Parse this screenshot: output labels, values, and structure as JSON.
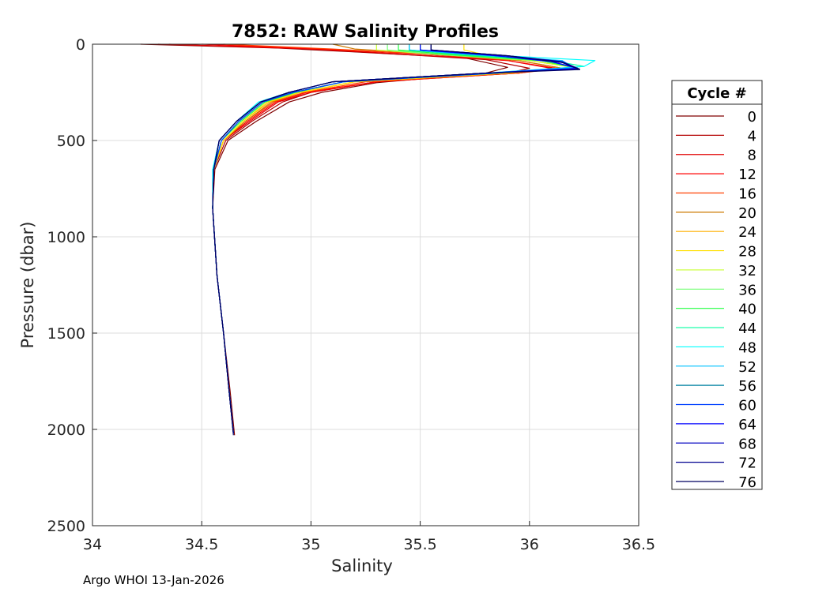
{
  "chart_data": {
    "type": "line",
    "title": "7852: RAW Salinity Profiles",
    "xlabel": "Salinity",
    "ylabel": "Pressure (dbar)",
    "xlim": [
      34,
      36.5
    ],
    "ylim": [
      0,
      2500
    ],
    "y_reversed": true,
    "grid": true,
    "xticks": [
      34,
      34.5,
      35,
      35.5,
      36,
      36.5
    ],
    "xtick_labels": [
      "34",
      "34.5",
      "35",
      "35.5",
      "36",
      "36.5"
    ],
    "yticks": [
      0,
      500,
      1000,
      1500,
      2000,
      2500
    ],
    "ytick_labels": [
      "0",
      "500",
      "1000",
      "1500",
      "2000",
      "2500"
    ],
    "legend": {
      "title": "Cycle #",
      "placement": "outside-right",
      "entries": [
        {
          "label": "0",
          "color": "#800000"
        },
        {
          "label": "4",
          "color": "#b40000"
        },
        {
          "label": "8",
          "color": "#e00000"
        },
        {
          "label": "12",
          "color": "#ff0000"
        },
        {
          "label": "16",
          "color": "#ff4000"
        },
        {
          "label": "20",
          "color": "#cc7a00"
        },
        {
          "label": "24",
          "color": "#ffb000"
        },
        {
          "label": "28",
          "color": "#ffe000"
        },
        {
          "label": "32",
          "color": "#c8ff30"
        },
        {
          "label": "36",
          "color": "#70ff70"
        },
        {
          "label": "40",
          "color": "#20ff40"
        },
        {
          "label": "44",
          "color": "#00ffa0"
        },
        {
          "label": "48",
          "color": "#00ffff"
        },
        {
          "label": "52",
          "color": "#00c0ff"
        },
        {
          "label": "56",
          "color": "#0080a0"
        },
        {
          "label": "60",
          "color": "#0040ff"
        },
        {
          "label": "64",
          "color": "#0000ff"
        },
        {
          "label": "68",
          "color": "#0000c0"
        },
        {
          "label": "72",
          "color": "#000090"
        },
        {
          "label": "76",
          "color": "#000060"
        }
      ]
    },
    "series": [
      {
        "label": "0",
        "color": "#800000",
        "x": [
          34.22,
          34.85,
          35.2,
          35.7,
          35.9,
          35.8,
          35.3,
          35.05,
          34.9,
          34.75,
          34.62,
          34.56,
          34.55,
          34.57,
          34.6,
          34.63,
          34.65
        ],
        "y": [
          0,
          20,
          40,
          70,
          120,
          150,
          200,
          250,
          300,
          400,
          500,
          650,
          850,
          1200,
          1500,
          1800,
          2030
        ]
      },
      {
        "label": "4",
        "color": "#b40000",
        "x": [
          34.3,
          34.9,
          35.3,
          35.8,
          36.0,
          35.9,
          35.3,
          35.0,
          34.87,
          34.73,
          34.61,
          34.555,
          34.55,
          34.57,
          34.6,
          34.625,
          34.645
        ],
        "y": [
          0,
          20,
          45,
          80,
          125,
          150,
          195,
          250,
          300,
          400,
          500,
          650,
          850,
          1200,
          1500,
          1800,
          2020
        ]
      },
      {
        "label": "8",
        "color": "#e00000",
        "x": [
          34.35,
          35.0,
          35.4,
          35.9,
          36.1,
          35.95,
          35.3,
          35.0,
          34.85,
          34.72,
          34.6,
          34.555,
          34.55,
          34.57,
          34.6,
          34.625,
          34.645
        ],
        "y": [
          0,
          25,
          50,
          85,
          125,
          150,
          195,
          250,
          300,
          400,
          500,
          650,
          850,
          1200,
          1500,
          1800,
          2020
        ]
      },
      {
        "label": "12",
        "color": "#ff0000",
        "x": [
          34.5,
          35.05,
          35.5,
          35.9,
          36.12,
          35.95,
          35.3,
          34.98,
          34.84,
          34.71,
          34.6,
          34.555,
          34.55,
          34.57,
          34.6,
          34.625,
          34.645
        ],
        "y": [
          0,
          25,
          50,
          85,
          125,
          150,
          195,
          250,
          300,
          400,
          500,
          650,
          850,
          1200,
          1500,
          1800,
          2020
        ]
      },
      {
        "label": "16",
        "color": "#ff4000",
        "x": [
          34.6,
          35.1,
          35.5,
          35.95,
          36.15,
          35.95,
          35.25,
          34.97,
          34.83,
          34.7,
          34.6,
          34.555,
          34.55,
          34.57,
          34.6,
          34.625,
          34.645
        ],
        "y": [
          0,
          25,
          50,
          85,
          125,
          150,
          195,
          250,
          300,
          400,
          500,
          650,
          850,
          1200,
          1500,
          1800,
          2020
        ]
      },
      {
        "label": "20",
        "color": "#cc7a00",
        "x": [
          35.1,
          35.2,
          35.55,
          35.95,
          36.15,
          35.9,
          35.2,
          34.95,
          34.82,
          34.7,
          34.6,
          34.555,
          34.55,
          34.57,
          34.6,
          34.625,
          34.645
        ],
        "y": [
          0,
          25,
          50,
          85,
          125,
          150,
          195,
          250,
          300,
          400,
          500,
          650,
          850,
          1200,
          1500,
          1800,
          2020
        ]
      },
      {
        "label": "24",
        "color": "#ffb000",
        "x": [
          35.5,
          35.5,
          35.65,
          36.0,
          36.2,
          35.9,
          35.2,
          34.95,
          34.81,
          34.69,
          34.6,
          34.555,
          34.55,
          34.57,
          34.6,
          34.625,
          34.645
        ],
        "y": [
          0,
          30,
          55,
          85,
          120,
          150,
          195,
          250,
          300,
          400,
          500,
          650,
          850,
          1200,
          1500,
          1800,
          2020
        ]
      },
      {
        "label": "28",
        "color": "#ffe000",
        "x": [
          35.7,
          35.7,
          35.8,
          36.0,
          36.2,
          35.9,
          35.2,
          34.95,
          34.8,
          34.69,
          34.6,
          34.555,
          34.55,
          34.57,
          34.6,
          34.625,
          34.645
        ],
        "y": [
          0,
          30,
          55,
          85,
          120,
          150,
          195,
          250,
          300,
          400,
          500,
          650,
          850,
          1200,
          1500,
          1800,
          2020
        ]
      },
      {
        "label": "32",
        "color": "#c8ff30",
        "x": [
          35.3,
          35.3,
          35.6,
          36.0,
          36.2,
          35.85,
          35.15,
          34.93,
          34.79,
          34.68,
          34.59,
          34.555,
          34.55,
          34.57,
          34.6,
          34.625,
          34.645
        ],
        "y": [
          0,
          30,
          55,
          85,
          120,
          150,
          195,
          250,
          300,
          400,
          500,
          650,
          850,
          1200,
          1500,
          1800,
          2020
        ]
      },
      {
        "label": "36",
        "color": "#70ff70",
        "x": [
          35.35,
          35.35,
          35.6,
          36.05,
          36.2,
          35.85,
          35.15,
          34.93,
          34.79,
          34.68,
          34.59,
          34.555,
          34.55,
          34.57,
          34.6,
          34.625,
          34.645
        ],
        "y": [
          0,
          30,
          55,
          85,
          120,
          150,
          195,
          250,
          300,
          400,
          500,
          650,
          850,
          1200,
          1500,
          1800,
          2020
        ]
      },
      {
        "label": "40",
        "color": "#20ff40",
        "x": [
          35.4,
          35.4,
          35.65,
          36.05,
          36.2,
          35.85,
          35.15,
          34.93,
          34.79,
          34.68,
          34.59,
          34.555,
          34.55,
          34.57,
          34.6,
          34.625,
          34.645
        ],
        "y": [
          0,
          30,
          55,
          85,
          120,
          150,
          195,
          250,
          300,
          400,
          500,
          650,
          850,
          1200,
          1500,
          1800,
          2020
        ]
      },
      {
        "label": "44",
        "color": "#00ffa0",
        "x": [
          35.45,
          35.45,
          35.7,
          36.1,
          36.25,
          35.85,
          35.15,
          34.92,
          34.78,
          34.67,
          34.59,
          34.555,
          34.55,
          34.57,
          34.6,
          34.625,
          34.645
        ],
        "y": [
          0,
          30,
          55,
          85,
          115,
          150,
          195,
          250,
          300,
          400,
          500,
          650,
          850,
          1200,
          1500,
          1800,
          2020
        ]
      },
      {
        "label": "48",
        "color": "#00ffff",
        "x": [
          35.5,
          35.5,
          35.8,
          36.3,
          36.25,
          35.8,
          35.1,
          34.9,
          34.76,
          34.66,
          34.58,
          34.55,
          34.55,
          34.57,
          34.6,
          34.625,
          34.645
        ],
        "y": [
          0,
          30,
          55,
          85,
          115,
          150,
          195,
          250,
          300,
          400,
          500,
          650,
          850,
          1200,
          1500,
          1800,
          2020
        ]
      },
      {
        "label": "52",
        "color": "#00c0ff",
        "x": [
          35.45,
          35.45,
          35.75,
          36.15,
          36.2,
          35.8,
          35.1,
          34.9,
          34.77,
          34.66,
          34.58,
          34.555,
          34.55,
          34.57,
          34.6,
          34.625,
          34.645
        ],
        "y": [
          0,
          30,
          55,
          85,
          120,
          150,
          195,
          250,
          300,
          400,
          500,
          650,
          850,
          1200,
          1500,
          1800,
          2020
        ]
      },
      {
        "label": "56",
        "color": "#0080a0",
        "x": [
          35.5,
          35.5,
          35.8,
          36.1,
          36.22,
          35.85,
          35.15,
          34.92,
          34.78,
          34.67,
          34.59,
          34.555,
          34.55,
          34.57,
          34.6,
          34.625,
          34.645
        ],
        "y": [
          0,
          30,
          55,
          90,
          125,
          150,
          195,
          250,
          300,
          400,
          500,
          650,
          850,
          1200,
          1500,
          1800,
          2020
        ]
      },
      {
        "label": "60",
        "color": "#0040ff",
        "x": [
          35.55,
          35.55,
          35.85,
          36.1,
          36.22,
          35.85,
          35.15,
          34.92,
          34.78,
          34.67,
          34.59,
          34.555,
          34.55,
          34.57,
          34.6,
          34.625,
          34.645
        ],
        "y": [
          0,
          30,
          60,
          90,
          125,
          150,
          195,
          250,
          300,
          400,
          500,
          650,
          850,
          1200,
          1500,
          1800,
          2020
        ]
      },
      {
        "label": "64",
        "color": "#0000ff",
        "x": [
          35.5,
          35.5,
          35.85,
          36.1,
          36.22,
          35.8,
          35.1,
          34.9,
          34.77,
          34.66,
          34.58,
          34.555,
          34.55,
          34.57,
          34.6,
          34.625,
          34.645
        ],
        "y": [
          0,
          30,
          60,
          90,
          125,
          150,
          195,
          250,
          300,
          400,
          500,
          650,
          850,
          1200,
          1500,
          1800,
          2020
        ]
      },
      {
        "label": "68",
        "color": "#0000c0",
        "x": [
          35.55,
          35.55,
          35.9,
          36.15,
          36.23,
          35.8,
          35.1,
          34.9,
          34.77,
          34.66,
          34.58,
          34.555,
          34.55,
          34.57,
          34.6,
          34.625,
          34.645
        ],
        "y": [
          0,
          30,
          60,
          90,
          130,
          150,
          195,
          250,
          300,
          400,
          500,
          650,
          850,
          1200,
          1500,
          1800,
          2020
        ]
      },
      {
        "label": "72",
        "color": "#000090",
        "x": [
          35.55,
          35.55,
          35.9,
          36.15,
          36.23,
          35.8,
          35.1,
          34.9,
          34.77,
          34.66,
          34.58,
          34.555,
          34.55,
          34.57,
          34.6,
          34.625,
          34.645
        ],
        "y": [
          0,
          30,
          60,
          95,
          130,
          150,
          195,
          250,
          300,
          400,
          500,
          650,
          850,
          1200,
          1500,
          1800,
          2020
        ]
      },
      {
        "label": "76",
        "color": "#000060",
        "x": [
          35.55,
          35.55,
          35.9,
          36.15,
          36.23,
          35.8,
          35.1,
          34.9,
          34.77,
          34.66,
          34.58,
          34.555,
          34.55,
          34.57,
          34.6,
          34.625,
          34.645
        ],
        "y": [
          0,
          30,
          60,
          95,
          132,
          150,
          195,
          250,
          300,
          400,
          500,
          650,
          850,
          1200,
          1500,
          1800,
          2030
        ]
      }
    ]
  },
  "footer": "Argo WHOI 13-Jan-2026"
}
